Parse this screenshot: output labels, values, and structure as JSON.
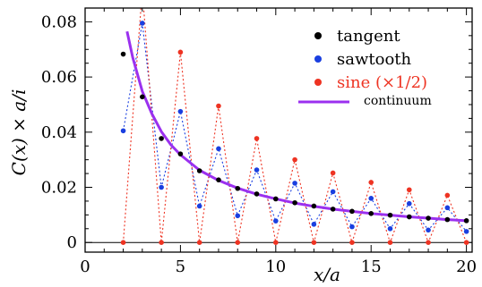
{
  "chart_data": {
    "type": "scatter",
    "xlabel": "x/a",
    "ylabel": "C(x) × a/i",
    "xlim": [
      0,
      20.3
    ],
    "ylim": [
      -0.0035,
      0.085
    ],
    "x_ticks": [
      0,
      5,
      10,
      15,
      20
    ],
    "x_tick_labels": [
      "0",
      "5",
      "10",
      "15",
      "20"
    ],
    "y_ticks": [
      0,
      0.02,
      0.04,
      0.06,
      0.08
    ],
    "y_tick_labels": [
      "0",
      "0.02",
      "0.04",
      "0.06",
      "0.08"
    ],
    "grid": false,
    "legend_position": "top-right",
    "series": [
      {
        "name": "tangent",
        "color": "#000000",
        "style": "markers",
        "x": [
          2,
          3,
          4,
          5,
          6,
          7,
          8,
          9,
          10,
          11,
          12,
          13,
          14,
          15,
          16,
          17,
          18,
          19,
          20
        ],
        "y": [
          0.0683,
          0.0528,
          0.0377,
          0.0321,
          0.026,
          0.0227,
          0.0196,
          0.0176,
          0.0158,
          0.0144,
          0.0132,
          0.0121,
          0.0113,
          0.0105,
          0.0099,
          0.0093,
          0.0088,
          0.0083,
          0.0079
        ]
      },
      {
        "name": "sawtooth",
        "color": "#1a3fe0",
        "style": "markers+dotted",
        "x": [
          2,
          3,
          4,
          5,
          6,
          7,
          8,
          9,
          10,
          11,
          12,
          13,
          14,
          15,
          16,
          17,
          18,
          19,
          20
        ],
        "y": [
          0.0405,
          0.0795,
          0.02,
          0.0475,
          0.0132,
          0.034,
          0.0097,
          0.0263,
          0.0078,
          0.0215,
          0.0066,
          0.0184,
          0.0057,
          0.016,
          0.005,
          0.0141,
          0.0045,
          0.0126,
          0.004
        ]
      },
      {
        "name": "sine (×1/2)",
        "color": "#ee3322",
        "style": "markers+dotted",
        "x": [
          2,
          3,
          4,
          5,
          6,
          7,
          8,
          9,
          10,
          11,
          12,
          13,
          14,
          15,
          16,
          17,
          18,
          19,
          20
        ],
        "y": [
          0,
          0.0915,
          0,
          0.069,
          0,
          0.0495,
          0,
          0.0377,
          0,
          0.03,
          0,
          0.0252,
          0,
          0.0218,
          0,
          0.0191,
          0,
          0.0171,
          0
        ]
      },
      {
        "name": "continuum",
        "color": "#9b30ef",
        "style": "line",
        "x": [
          2.2,
          2.5,
          3,
          3.5,
          4,
          4.5,
          5,
          6,
          7,
          8,
          9,
          10,
          11,
          12,
          13,
          14,
          15,
          16,
          17,
          18,
          19,
          20
        ],
        "y": [
          0.0765,
          0.067,
          0.0548,
          0.0467,
          0.0402,
          0.0354,
          0.0318,
          0.0262,
          0.0225,
          0.0197,
          0.0175,
          0.0158,
          0.0143,
          0.0131,
          0.0121,
          0.0113,
          0.0105,
          0.0099,
          0.0093,
          0.0088,
          0.0083,
          0.0079
        ]
      }
    ]
  },
  "legend": {
    "tangent": "tangent",
    "sawtooth": "sawtooth",
    "sine": "sine (×1/2)",
    "continuum": "continuum"
  }
}
